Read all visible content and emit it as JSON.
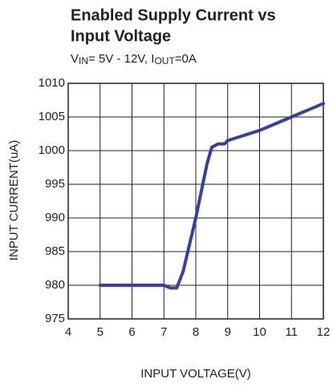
{
  "chart_data": {
    "type": "line",
    "title_lines": [
      "Enabled Supply Current vs",
      "Input Voltage"
    ],
    "subtitle_parts": [
      "V",
      "IN",
      "= 5V - 12V, I",
      "OUT",
      "=0A"
    ],
    "x_label": "INPUT VOLTAGE(V)",
    "y_label": "INPUT CURRENT(uA)",
    "xlim": [
      4,
      12
    ],
    "xticks": [
      4,
      5,
      6,
      7,
      8,
      9,
      10,
      11,
      12
    ],
    "ylim": [
      975,
      1010
    ],
    "yticks": [
      975,
      980,
      985,
      990,
      995,
      1000,
      1005,
      1010
    ],
    "grid": true,
    "series": [
      {
        "color": "#3a3f9a",
        "x": [
          5,
          7,
          7.2,
          7.4,
          7.6,
          8,
          8.35,
          8.5,
          8.7,
          8.9,
          9,
          10,
          10.5,
          11,
          12
        ],
        "values": [
          980,
          980,
          979.6,
          979.6,
          982,
          990,
          998,
          1000.5,
          1001,
          1001,
          1001.5,
          1003,
          1004,
          1005,
          1007
        ]
      }
    ]
  }
}
